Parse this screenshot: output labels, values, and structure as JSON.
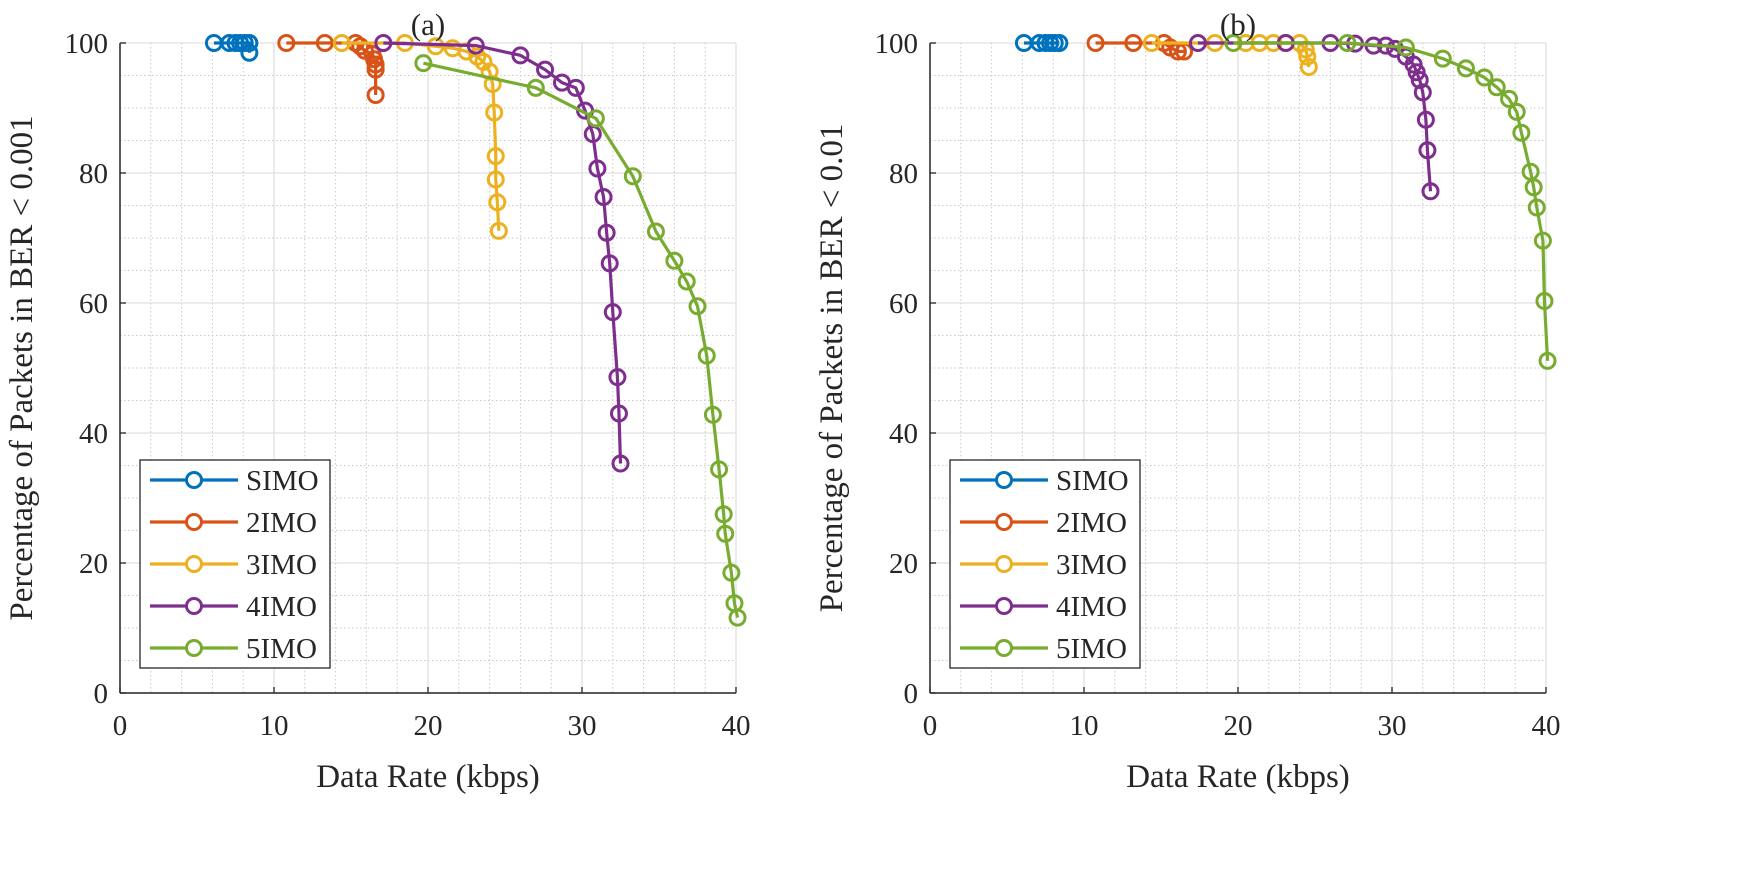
{
  "series_colors": {
    "SIMO": "#0072BD",
    "2IMO": "#D95319",
    "3IMO": "#EDB120",
    "4IMO": "#7E2F8E",
    "5IMO": "#77AC30"
  },
  "chart_data": [
    {
      "type": "line",
      "title": "(a)",
      "xlabel": "Data Rate (kbps)",
      "ylabel": "Percentage of Packets in BER < 0.001",
      "xlim": [
        0,
        40
      ],
      "ylim": [
        0,
        100
      ],
      "xticks": [
        "0",
        "10",
        "20",
        "30",
        "40"
      ],
      "yticks": [
        "0",
        "20",
        "40",
        "60",
        "80",
        "100"
      ],
      "grid": true,
      "minor_grid": true,
      "marker": "circle",
      "legend_position": "bottom-left",
      "series": [
        {
          "name": "SIMO",
          "x": [
            6.1,
            7.1,
            7.5,
            7.8,
            8.1,
            8.4,
            8.4
          ],
          "y": [
            100,
            100,
            100,
            100,
            100,
            100,
            98.5
          ]
        },
        {
          "name": "2IMO",
          "x": [
            10.8,
            13.3,
            15.3,
            15.6,
            15.9,
            16.4,
            16.5,
            16.6,
            16.6,
            16.6
          ],
          "y": [
            100,
            100,
            100,
            99.5,
            98.8,
            98.3,
            97.5,
            96.7,
            95.9,
            92.0
          ]
        },
        {
          "name": "3IMO",
          "x": [
            14.4,
            18.5,
            20.5,
            21.6,
            22.5,
            23.2,
            23.6,
            24.0,
            24.2,
            24.3,
            24.4,
            24.4,
            24.5,
            24.6
          ],
          "y": [
            100,
            100,
            99.5,
            99.2,
            98.7,
            97.9,
            97.1,
            95.6,
            93.7,
            89.3,
            82.6,
            79.0,
            75.5,
            71.1
          ]
        },
        {
          "name": "4IMO",
          "x": [
            17.1,
            23.1,
            26.0,
            27.6,
            28.7,
            29.6,
            30.2,
            30.7,
            31.0,
            31.4,
            31.6,
            31.8,
            32.0,
            32.3,
            32.4,
            32.5
          ],
          "y": [
            100,
            99.6,
            98.1,
            95.9,
            93.9,
            93.1,
            89.6,
            86.0,
            80.7,
            76.3,
            70.8,
            66.1,
            58.6,
            48.6,
            43.0,
            35.3
          ]
        },
        {
          "name": "5IMO",
          "x": [
            19.7,
            27.0,
            30.9,
            33.3,
            34.8,
            36.0,
            36.8,
            37.5,
            38.1,
            38.5,
            38.9,
            39.2,
            39.3,
            39.7,
            39.9,
            40.1
          ],
          "y": [
            96.9,
            93.1,
            88.4,
            79.5,
            71.0,
            66.5,
            63.3,
            59.5,
            51.9,
            42.8,
            34.4,
            27.5,
            24.5,
            18.5,
            13.8,
            11.6
          ]
        }
      ]
    },
    {
      "type": "line",
      "title": "(b)",
      "xlabel": "Data Rate (kbps)",
      "ylabel": "Percentage of Packets in BER < 0.01",
      "xlim": [
        0,
        40
      ],
      "ylim": [
        0,
        100
      ],
      "xticks": [
        "0",
        "10",
        "20",
        "30",
        "40"
      ],
      "yticks": [
        "0",
        "20",
        "40",
        "60",
        "80",
        "100"
      ],
      "grid": true,
      "minor_grid": true,
      "marker": "circle",
      "legend_position": "bottom-left",
      "series": [
        {
          "name": "SIMO",
          "x": [
            6.1,
            7.1,
            7.5,
            7.8,
            8.1,
            8.4
          ],
          "y": [
            100,
            100,
            100,
            100,
            100,
            100
          ]
        },
        {
          "name": "2IMO",
          "x": [
            10.75,
            13.2,
            15.2,
            15.6,
            16.1,
            16.5
          ],
          "y": [
            100,
            100,
            100,
            99.3,
            98.7,
            98.7
          ]
        },
        {
          "name": "3IMO",
          "x": [
            14.4,
            18.5,
            20.5,
            21.4,
            22.3,
            23.1,
            24.0,
            24.4,
            24.5,
            24.6
          ],
          "y": [
            100,
            100,
            100,
            100,
            100,
            100,
            100,
            99.0,
            97.9,
            96.3
          ]
        },
        {
          "name": "4IMO",
          "x": [
            17.4,
            23.1,
            26.0,
            27.6,
            28.8,
            29.6,
            30.2,
            30.9,
            31.4,
            31.6,
            31.8,
            32.0,
            32.2,
            32.3,
            32.5
          ],
          "y": [
            100,
            100,
            100,
            99.9,
            99.6,
            99.6,
            99.1,
            97.9,
            96.7,
            95.5,
            94.3,
            92.4,
            88.2,
            83.5,
            77.2
          ]
        },
        {
          "name": "5IMO",
          "x": [
            19.7,
            27.1,
            30.9,
            33.3,
            34.8,
            36.0,
            36.8,
            37.6,
            38.1,
            38.4,
            39.0,
            39.2,
            39.4,
            39.8,
            39.9,
            40.1
          ],
          "y": [
            100,
            100,
            99.3,
            97.6,
            96.1,
            94.7,
            93.2,
            91.4,
            89.4,
            86.2,
            80.2,
            77.8,
            74.7,
            69.6,
            60.3,
            51.1
          ]
        }
      ]
    }
  ]
}
